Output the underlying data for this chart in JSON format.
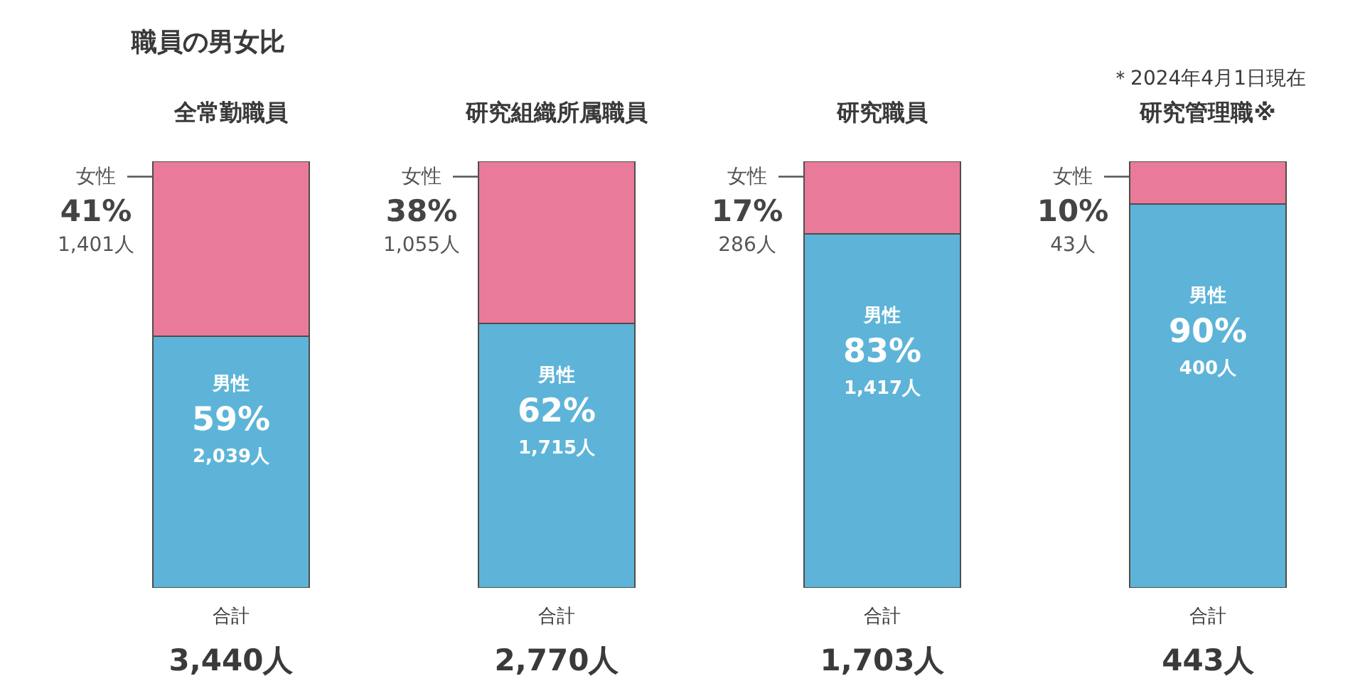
{
  "chart_data": {
    "type": "bar",
    "title": "職員の男女比",
    "stacked": true,
    "categories": [
      "全常勤職員",
      "研究組織所属職員",
      "研究職員",
      "研究管理職※"
    ],
    "series": [
      {
        "name": "男性",
        "color": "#5db4d8",
        "values": [
          59,
          62,
          83,
          90
        ],
        "value_labels": [
          "59%\n2,039人",
          "62%\n1,715人",
          "83%\n1,417人",
          "90%\n400人"
        ]
      },
      {
        "name": "女性",
        "color": "#ea7a9a",
        "values": [
          41,
          38,
          17,
          10
        ],
        "value_labels": [
          "41%\n1,401人",
          "38%\n1,055人",
          "17%\n286人",
          "10%\n43人"
        ]
      }
    ],
    "ylim": [
      0,
      100
    ],
    "tick_labels": "x",
    "grid": false,
    "legend": false,
    "annotations": [
      "＊2024年4月1日現在",
      "合計",
      "合計",
      "合計",
      "合計",
      "3,440人",
      "2,770人",
      "1,703人",
      "443人"
    ]
  }
}
